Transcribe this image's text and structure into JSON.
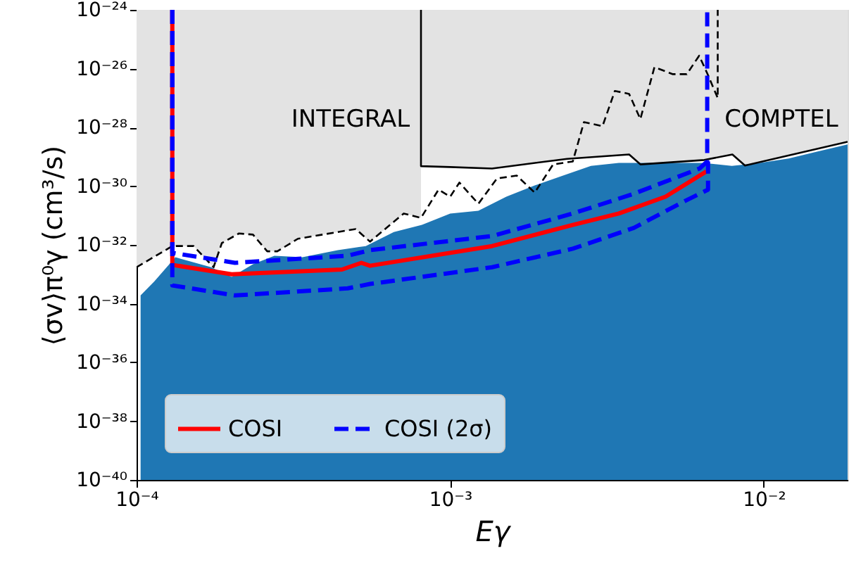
{
  "chart_data": {
    "type": "line",
    "xlabel": "Eγ",
    "ylabel": "⟨σv⟩π⁰γ (cm³/s)",
    "log": "xy",
    "grid": false,
    "legend": "bottom left",
    "xlim": [
      0.0001,
      0.0185
    ],
    "ylim": [
      1e-40,
      1e-24
    ],
    "xticks": [
      {
        "value": 0.0001,
        "label": "10⁻⁴"
      },
      {
        "value": 0.001,
        "label": "10⁻³"
      },
      {
        "value": 0.01,
        "label": "10⁻²"
      }
    ],
    "yticks": [
      {
        "value": 1e-40,
        "label": "10⁻⁴⁰"
      },
      {
        "value": 1e-38,
        "label": "10⁻³⁸"
      },
      {
        "value": 1e-36,
        "label": "10⁻³⁶"
      },
      {
        "value": 1e-34,
        "label": "10⁻³⁴"
      },
      {
        "value": 1e-32,
        "label": "10⁻³²"
      },
      {
        "value": 1e-30,
        "label": "10⁻³⁰"
      },
      {
        "value": 1e-28,
        "label": "10⁻²⁸"
      },
      {
        "value": 1e-26,
        "label": "10⁻²⁶"
      },
      {
        "value": 1e-24,
        "label": "10⁻²⁴"
      }
    ],
    "annotations": [
      "INTEGRAL",
      "COMPTEL"
    ],
    "series": [
      {
        "color": "#000000",
        "line_style": "dashed",
        "x": [
          0.0001,
          0.00013,
          0.000152,
          0.000176,
          0.000187,
          0.000212,
          0.000235,
          0.000261,
          0.000281,
          0.000327,
          0.0005,
          0.000555,
          0.000711,
          0.000807,
          0.000918,
          0.001,
          0.00107,
          0.00123,
          0.00141,
          0.00163,
          0.00186,
          0.00213,
          0.00246,
          0.00267,
          0.00306,
          0.00335,
          0.00372,
          0.00404,
          0.00448,
          0.00513,
          0.00568,
          0.00622,
          0.00662,
          0.00713,
          0.00713
        ],
        "values": [
          1.74e-33,
          9.12e-33,
          9.12e-33,
          1.74e-33,
          1.15e-32,
          2.45e-32,
          2.24e-32,
          6.03e-33,
          6.03e-33,
          1.62e-32,
          3.47e-32,
          1.29e-32,
          1.17e-31,
          8.32e-32,
          7.59e-31,
          4.37e-31,
          1.32e-30,
          2.51e-31,
          1.82e-30,
          2.29e-30,
          6.03e-31,
          5.5e-30,
          6.92e-30,
          1.51e-28,
          1.1e-28,
          1.74e-27,
          1.38e-27,
          1.91e-28,
          1.12e-26,
          6.46e-27,
          6.46e-27,
          2.75e-26,
          6.46e-27,
          1e-27,
          1e-24
        ],
        "lower": [
          1.74e-33,
          9.12e-33,
          9.12e-33,
          1.74e-33,
          1.15e-32,
          2.45e-32,
          2.24e-32,
          6.03e-33,
          6.03e-33,
          1.62e-32,
          3.47e-32,
          1.29e-32,
          1.17e-31,
          8.32e-32,
          null,
          null,
          null,
          null,
          null,
          null,
          null,
          null,
          null,
          null,
          null,
          null,
          null,
          null,
          null,
          null,
          null,
          null,
          null,
          null,
          null
        ],
        "upper": [
          1e-24,
          1e-24,
          1e-24,
          1e-24,
          1e-24,
          1e-24,
          1e-24,
          1e-24,
          1e-24,
          1e-24,
          1e-24,
          1e-24,
          1e-24,
          1e-24,
          null,
          null,
          null,
          null,
          null,
          null,
          null,
          null,
          null,
          null,
          null,
          null,
          null,
          null,
          null,
          null,
          null,
          null,
          null,
          null,
          null
        ]
      },
      {
        "color": "#000000",
        "line_style": "solid",
        "x": [
          0.000807,
          0.000807,
          0.001,
          0.00136,
          0.00236,
          0.00372,
          0.00404,
          0.00646,
          0.00794,
          0.00871,
          0.0185
        ],
        "values": [
          1e-24,
          4.79e-30,
          4.47e-30,
          3.98e-30,
          8.51e-30,
          1.2e-29,
          5.5e-30,
          7.76e-30,
          1.2e-29,
          5.01e-30,
          3.24e-29
        ],
        "lower": [
          1e-24,
          4.79e-30,
          4.47e-30,
          3.98e-30,
          8.51e-30,
          1.2e-29,
          5.5e-30,
          7.76e-30,
          1.2e-29,
          5.01e-30,
          3.24e-29
        ],
        "upper": [
          1e-24,
          1e-24,
          1e-24,
          1e-24,
          1e-24,
          1e-24,
          1e-24,
          1e-24,
          1e-24,
          1e-24,
          1e-24
        ]
      },
      {
        "type": "area",
        "color": "#1f77b4",
        "x": [
          0.000103,
          0.000114,
          0.000133,
          0.000173,
          0.000201,
          0.000235,
          0.000275,
          0.000338,
          0.000438,
          0.000538,
          0.000661,
          0.000813,
          0.001,
          0.00123,
          0.00151,
          0.00186,
          0.00229,
          0.00281,
          0.00345,
          0.00471,
          0.00643,
          0.00791,
          0.00972,
          0.012,
          0.0147,
          0.0185
        ],
        "values": [
          1.91e-34,
          5.75e-34,
          3.8e-33,
          1.74e-33,
          8.13e-34,
          2.19e-33,
          4.27e-33,
          3.8e-33,
          6.61e-33,
          9.12e-33,
          2.75e-32,
          4.79e-32,
          1.17e-31,
          1.45e-31,
          4.37e-31,
          1.05e-30,
          2.29e-30,
          4.9e-30,
          6.17e-30,
          6.17e-30,
          6.17e-30,
          4.9e-30,
          6.17e-30,
          8.71e-30,
          1.48e-29,
          2.63e-29
        ]
      },
      {
        "name": "COSI",
        "color": "#ff0000",
        "line_style": "solid",
        "x": [
          0.00013,
          0.00013,
          0.000201,
          0.000452,
          0.000521,
          0.000555,
          0.00136,
          0.00246,
          0.00345,
          0.00486,
          0.00656
        ],
        "values": [
          1e-24,
          2.09e-33,
          1e-33,
          1.45e-33,
          2.45e-33,
          1.95e-33,
          9.12e-33,
          4.79e-32,
          1.17e-31,
          4.37e-31,
          3.16e-30
        ]
      },
      {
        "name": "COSI (2σ)",
        "color": "#0000ff",
        "line_style": "dashed",
        "x": [
          0.00013,
          0.00013,
          0.000206,
          0.000471,
          0.000555,
          0.00136,
          0.00246,
          0.00385,
          0.00624,
          0.0066,
          0.0066
        ],
        "values": [
          1e-24,
          5.37e-33,
          2.45e-33,
          4.27e-33,
          6.61e-33,
          2e-32,
          1.17e-31,
          5.5e-31,
          3.98e-30,
          6.92e-30,
          1e-24
        ]
      },
      {
        "color": "#0000ff",
        "line_style": "dashed",
        "x": [
          0.00013,
          0.00013,
          0.000206,
          0.000471,
          0.000555,
          0.00136,
          0.00246,
          0.00385,
          0.00562,
          0.00664,
          0.00664
        ],
        "values": [
          1e-24,
          4.17e-34,
          1.91e-34,
          3.31e-34,
          4.68e-34,
          1.74e-33,
          7.41e-33,
          3.8e-32,
          3.16e-31,
          7.59e-31,
          6.92e-30
        ]
      }
    ]
  }
}
